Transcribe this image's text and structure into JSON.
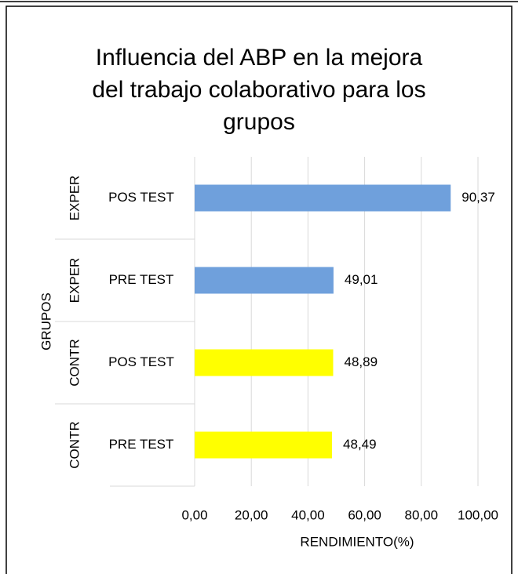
{
  "chart_data": {
    "type": "bar",
    "orientation": "horizontal",
    "title": [
      "Influencia del ABP en la mejora",
      "del trabajo colaborativo para los",
      "grupos"
    ],
    "categories": [
      "POS TEST",
      "PRE TEST",
      "POS TEST",
      "PRE TEST"
    ],
    "groups": [
      "EXPER",
      "EXPER",
      "CONTR",
      "CONTR"
    ],
    "values": [
      90.37,
      49.01,
      48.89,
      48.49
    ],
    "value_labels": [
      "90,37",
      "49,01",
      "48,89",
      "48,49"
    ],
    "colors": [
      "#6fa0dc",
      "#6fa0dc",
      "#ffff00",
      "#ffff00"
    ],
    "xlabel": "RENDIMIENTO(%)",
    "ylabel": "GRUPOS",
    "xlim": [
      0,
      100
    ],
    "xticks": [
      {
        "value": 0,
        "label": "0,00"
      },
      {
        "value": 20,
        "label": "20,00"
      },
      {
        "value": 40,
        "label": "40,00"
      },
      {
        "value": 60,
        "label": "60,00"
      },
      {
        "value": 80,
        "label": "80,00"
      },
      {
        "value": 100,
        "label": "100,00"
      }
    ],
    "grid": true
  }
}
